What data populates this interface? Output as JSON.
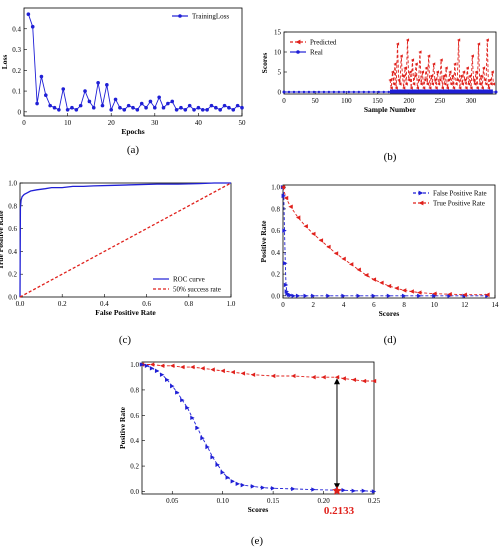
{
  "chart_data": [
    {
      "panel": "a",
      "caption": "(a)",
      "type": "line",
      "xlabel": "Epochs",
      "ylabel": "Loss",
      "xlim": [
        0,
        50
      ],
      "ylim": [
        -0.02,
        0.5
      ],
      "xticks": [
        0,
        10,
        20,
        30,
        40,
        50
      ],
      "yticks": [
        0,
        0.1,
        0.2,
        0.3,
        0.4
      ],
      "legend": "top-right",
      "grid": false,
      "series": [
        {
          "name": "TrainingLoss",
          "color": "#1f1fd6",
          "marker": "circle",
          "x": [
            1,
            2,
            3,
            4,
            5,
            6,
            7,
            8,
            9,
            10,
            11,
            12,
            13,
            14,
            15,
            16,
            17,
            18,
            19,
            20,
            21,
            22,
            23,
            24,
            25,
            26,
            27,
            28,
            29,
            30,
            31,
            32,
            33,
            34,
            35,
            36,
            37,
            38,
            39,
            40,
            41,
            42,
            43,
            44,
            45,
            46,
            47,
            48,
            49,
            50
          ],
          "y": [
            0.47,
            0.41,
            0.04,
            0.17,
            0.08,
            0.03,
            0.02,
            0.01,
            0.11,
            0.01,
            0.02,
            0.01,
            0.03,
            0.1,
            0.05,
            0.02,
            0.14,
            0.03,
            0.13,
            0.01,
            0.06,
            0.02,
            0.01,
            0.03,
            0.02,
            0.01,
            0.04,
            0.02,
            0.05,
            0.02,
            0.07,
            0.02,
            0.04,
            0.05,
            0.01,
            0.02,
            0.01,
            0.03,
            0.01,
            0.02,
            0.01,
            0.01,
            0.03,
            0.02,
            0.01,
            0.03,
            0.02,
            0.01,
            0.03,
            0.02
          ]
        }
      ]
    },
    {
      "panel": "b",
      "caption": "(b)",
      "type": "line",
      "xlabel": "Sample Number",
      "ylabel": "Scores",
      "xlim": [
        0,
        340
      ],
      "ylim": [
        -0.5,
        15
      ],
      "xticks": [
        0,
        50,
        100,
        150,
        200,
        250,
        300
      ],
      "yticks": [
        0,
        5,
        10,
        15
      ],
      "legend": "top-left",
      "grid": false,
      "series": [
        {
          "name": "Predicted",
          "color": "#e0201b",
          "marker": "triangle-left",
          "x": [
            170,
            172,
            174,
            176,
            178,
            180,
            182,
            184,
            186,
            188,
            190,
            192,
            194,
            196,
            198,
            200,
            202,
            204,
            206,
            208,
            210,
            212,
            214,
            216,
            218,
            220,
            222,
            224,
            226,
            228,
            230,
            232,
            234,
            236,
            238,
            240,
            242,
            244,
            246,
            248,
            250,
            252,
            254,
            256,
            258,
            260,
            262,
            264,
            266,
            268,
            270,
            272,
            274,
            276,
            278,
            280,
            282,
            284,
            286,
            288,
            290,
            292,
            294,
            296,
            298,
            300,
            302,
            304,
            306,
            308,
            310,
            312,
            314,
            316,
            318,
            320,
            322,
            324,
            326,
            328,
            330,
            332,
            334,
            336
          ],
          "y": [
            3,
            1,
            5,
            2,
            7,
            1,
            12,
            3,
            2,
            9,
            4,
            1,
            6,
            2,
            13,
            3,
            5,
            1,
            8,
            2,
            4,
            7,
            1,
            3,
            10,
            2,
            5,
            1,
            3,
            6,
            2,
            9,
            1,
            4,
            2,
            7,
            3,
            1,
            5,
            2,
            3,
            8,
            1,
            4,
            2,
            6,
            1,
            3,
            5,
            2,
            4,
            1,
            7,
            2,
            3,
            13,
            1,
            4,
            2,
            5,
            3,
            1,
            6,
            2,
            4,
            1,
            9,
            3,
            2,
            5,
            1,
            12,
            2,
            4,
            1,
            6,
            3,
            2,
            13,
            1,
            3,
            2,
            5,
            2
          ]
        },
        {
          "name": "Real",
          "color": "#1f1fd6",
          "marker": "circle",
          "x": [
            0,
            340
          ],
          "y": [
            0,
            0
          ]
        }
      ]
    },
    {
      "panel": "c",
      "caption": "(c)",
      "type": "line",
      "xlabel": "False Positive Rate",
      "ylabel": "True Positive Rate",
      "xlim": [
        0,
        1
      ],
      "ylim": [
        0,
        1
      ],
      "xticks": [
        0,
        0.2,
        0.4,
        0.6,
        0.8,
        1.0
      ],
      "yticks": [
        0,
        0.2,
        0.4,
        0.6,
        0.8,
        1.0
      ],
      "legend": "bottom-right",
      "grid": false,
      "series": [
        {
          "name": "ROC curve",
          "color": "#1f1fd6",
          "style": "solid",
          "x": [
            0,
            0.002,
            0.005,
            0.01,
            0.02,
            0.03,
            0.05,
            0.08,
            0.12,
            0.15,
            0.2,
            0.25,
            0.3,
            0.35,
            0.45,
            0.55,
            0.65,
            0.75,
            0.85,
            0.92,
            1.0
          ],
          "y": [
            0,
            0.78,
            0.85,
            0.88,
            0.9,
            0.91,
            0.93,
            0.94,
            0.95,
            0.96,
            0.96,
            0.97,
            0.97,
            0.975,
            0.98,
            0.985,
            0.99,
            0.99,
            0.995,
            1.0,
            1.0
          ]
        },
        {
          "name": "50% success rate",
          "color": "#e0201b",
          "style": "dashed",
          "x": [
            0,
            1
          ],
          "y": [
            0,
            1
          ]
        }
      ]
    },
    {
      "panel": "d",
      "caption": "(d)",
      "type": "line",
      "xlabel": "Scores",
      "ylabel": "Positive Rate",
      "xlim": [
        0,
        14
      ],
      "ylim": [
        -0.02,
        1.02
      ],
      "xticks": [
        0,
        2,
        4,
        6,
        8,
        10,
        12,
        14
      ],
      "yticks": [
        0,
        0.2,
        0.4,
        0.6,
        0.8,
        1.0
      ],
      "legend": "top-right",
      "grid": false,
      "series": [
        {
          "name": "False Positive Rate",
          "color": "#1f1fd6",
          "marker": "triangle-right",
          "x": [
            0,
            0.05,
            0.1,
            0.15,
            0.2,
            0.25,
            0.3,
            0.4,
            0.5,
            0.7,
            1,
            1.5,
            2,
            3,
            4,
            5,
            6,
            7,
            8,
            9,
            10,
            11,
            12,
            13.5
          ],
          "y": [
            1.0,
            0.92,
            0.6,
            0.3,
            0.1,
            0.04,
            0.02,
            0.01,
            0.005,
            0,
            0,
            0,
            0,
            0,
            0,
            0,
            0,
            0,
            0,
            0,
            0,
            0,
            0,
            0
          ]
        },
        {
          "name": "True Positive Rate",
          "color": "#e0201b",
          "marker": "triangle-left",
          "x": [
            0,
            0.2,
            0.5,
            1,
            1.5,
            2,
            2.5,
            3,
            3.5,
            4,
            4.5,
            5,
            5.5,
            6,
            6.5,
            7,
            7.5,
            8,
            8.5,
            9,
            10,
            11,
            12,
            13.5
          ],
          "y": [
            1.0,
            0.9,
            0.82,
            0.72,
            0.64,
            0.57,
            0.51,
            0.45,
            0.39,
            0.34,
            0.29,
            0.24,
            0.19,
            0.15,
            0.12,
            0.09,
            0.07,
            0.05,
            0.04,
            0.03,
            0.02,
            0.015,
            0.01,
            0.01
          ]
        }
      ]
    },
    {
      "panel": "e",
      "caption": "(e)",
      "type": "line",
      "xlabel": "Scores",
      "ylabel": "Positive Rate",
      "xlim": [
        0.02,
        0.25
      ],
      "ylim": [
        -0.02,
        1.02
      ],
      "xticks": [
        0.05,
        0.1,
        0.15,
        0.2,
        0.25
      ],
      "yticks": [
        0,
        0.2,
        0.4,
        0.6,
        0.8,
        1.0
      ],
      "legend": "none",
      "grid": false,
      "annotation": {
        "text": "0.2133",
        "x": 0.2133
      },
      "series": [
        {
          "name": "",
          "color": "#e0201b",
          "marker": "triangle-left",
          "x": [
            0.02,
            0.03,
            0.04,
            0.05,
            0.06,
            0.07,
            0.08,
            0.09,
            0.1,
            0.11,
            0.12,
            0.13,
            0.15,
            0.17,
            0.19,
            0.2,
            0.2133,
            0.22,
            0.23,
            0.24,
            0.25
          ],
          "y": [
            1.0,
            1.0,
            0.99,
            0.99,
            0.98,
            0.98,
            0.97,
            0.96,
            0.95,
            0.94,
            0.93,
            0.92,
            0.91,
            0.91,
            0.9,
            0.9,
            0.9,
            0.89,
            0.88,
            0.87,
            0.87
          ]
        },
        {
          "name": "",
          "color": "#1f1fd6",
          "marker": "triangle-right",
          "x": [
            0.02,
            0.025,
            0.03,
            0.035,
            0.04,
            0.045,
            0.05,
            0.055,
            0.06,
            0.065,
            0.07,
            0.075,
            0.08,
            0.085,
            0.09,
            0.095,
            0.1,
            0.105,
            0.11,
            0.115,
            0.12,
            0.13,
            0.14,
            0.15,
            0.17,
            0.19,
            0.2133,
            0.22,
            0.23,
            0.24,
            0.25
          ],
          "y": [
            1.0,
            0.99,
            0.97,
            0.95,
            0.92,
            0.88,
            0.83,
            0.78,
            0.72,
            0.66,
            0.58,
            0.5,
            0.42,
            0.35,
            0.27,
            0.21,
            0.15,
            0.11,
            0.08,
            0.06,
            0.05,
            0.04,
            0.03,
            0.025,
            0.02,
            0.015,
            0.01,
            0.01,
            0.005,
            0.005,
            0.0
          ]
        }
      ]
    }
  ]
}
